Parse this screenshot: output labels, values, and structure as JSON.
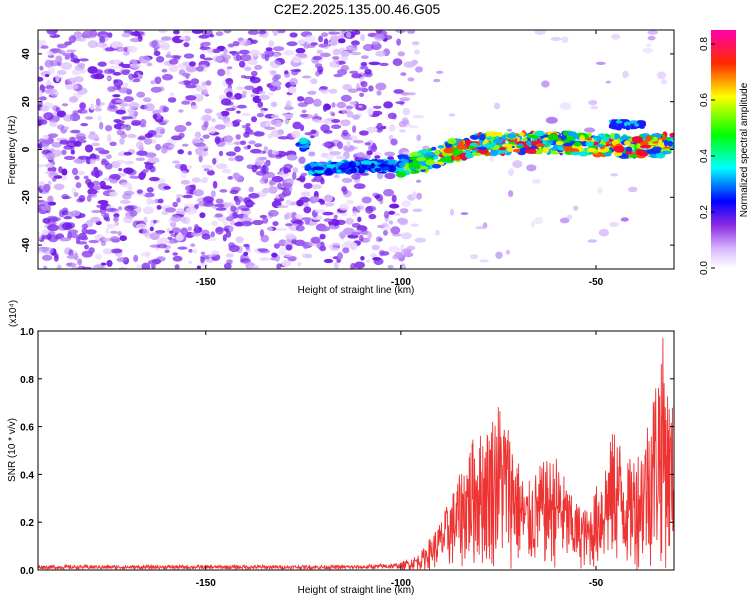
{
  "title": "C2E2.2025.135.00.46.G05",
  "chart_data": [
    {
      "type": "heatmap",
      "xlabel": "Height of straight line (km)",
      "ylabel": "Frequency (Hz)",
      "xlim": [
        -193,
        -30
      ],
      "ylim": [
        -50,
        50
      ],
      "x_ticks": [
        -150,
        -100,
        -50
      ],
      "y_ticks": [
        -40,
        -20,
        0,
        20,
        40
      ],
      "colorbar": {
        "label": "Normalized spectral amplitude",
        "range": [
          0,
          0.85
        ],
        "ticks": [
          0.0,
          0.2,
          0.4,
          0.6,
          0.8
        ]
      },
      "ridge": [
        {
          "x": -124,
          "y": -8
        },
        {
          "x": -108,
          "y": -7
        },
        {
          "x": -100,
          "y": -7
        },
        {
          "x": -92,
          "y": -4
        },
        {
          "x": -88,
          "y": -1
        },
        {
          "x": -80,
          "y": 2
        },
        {
          "x": -70,
          "y": 3
        },
        {
          "x": -60,
          "y": 3
        },
        {
          "x": -50,
          "y": 2
        },
        {
          "x": -40,
          "y": 1
        },
        {
          "x": -32,
          "y": 2
        }
      ]
    },
    {
      "type": "line",
      "xlabel": "Height of straight line (km)",
      "ylabel": "SNR (10 * v/v)",
      "y_multiplier": "(x10⁴)",
      "xlim": [
        -193,
        -30
      ],
      "ylim": [
        0,
        1.0
      ],
      "x_ticks": [
        -150,
        -100,
        -50
      ],
      "y_ticks": [
        0.0,
        0.2,
        0.4,
        0.6,
        0.8,
        1.0
      ],
      "color": "#ee3333",
      "envelope": [
        {
          "x": -193,
          "y": 0.02
        },
        {
          "x": -110,
          "y": 0.02
        },
        {
          "x": -100,
          "y": 0.03
        },
        {
          "x": -95,
          "y": 0.07
        },
        {
          "x": -90,
          "y": 0.2
        },
        {
          "x": -85,
          "y": 0.4
        },
        {
          "x": -82,
          "y": 0.55
        },
        {
          "x": -78,
          "y": 0.6
        },
        {
          "x": -75,
          "y": 0.72
        },
        {
          "x": -72,
          "y": 0.6
        },
        {
          "x": -68,
          "y": 0.35
        },
        {
          "x": -64,
          "y": 0.45
        },
        {
          "x": -60,
          "y": 0.48
        },
        {
          "x": -56,
          "y": 0.3
        },
        {
          "x": -52,
          "y": 0.25
        },
        {
          "x": -48,
          "y": 0.45
        },
        {
          "x": -45,
          "y": 0.62
        },
        {
          "x": -42,
          "y": 0.45
        },
        {
          "x": -38,
          "y": 0.55
        },
        {
          "x": -35,
          "y": 0.8
        },
        {
          "x": -33,
          "y": 1.0
        },
        {
          "x": -31,
          "y": 0.7
        },
        {
          "x": -30,
          "y": 0.7
        }
      ]
    }
  ]
}
